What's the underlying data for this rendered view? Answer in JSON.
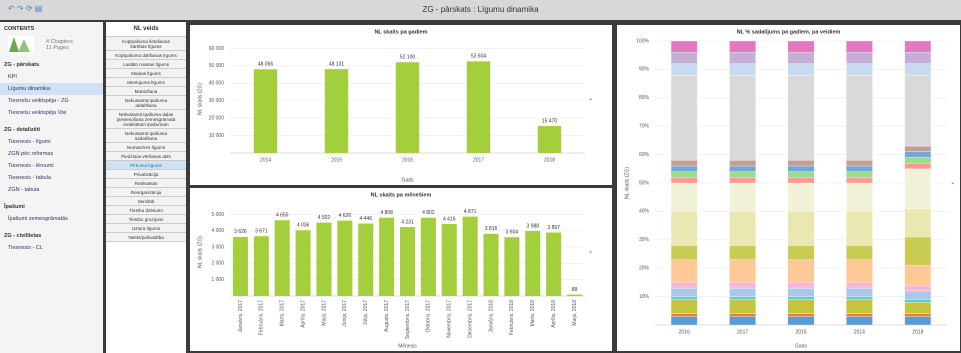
{
  "header": {
    "title": "ZG - pārskats : Līgumu dinamika"
  },
  "sidebar": {
    "title": "CONTENTS",
    "chapters": "4 Chapters",
    "pages": "11 Pages",
    "sections": [
      {
        "title": "ZG - pārskats",
        "items": [
          {
            "label": "KPI"
          },
          {
            "label": "Līgumu dinamika",
            "selected": true
          },
          {
            "label": "Tiesnešu veiktspēja - ZG"
          },
          {
            "label": "Tiesnešu veiktspēja Visi"
          }
        ]
      },
      {
        "title": "ZG - detalizēti",
        "items": [
          {
            "label": "Tiesnesis - līgumi"
          },
          {
            "label": "ZGN pēc reformas"
          },
          {
            "label": "Tiesnesis - lēmumi"
          },
          {
            "label": "Tiesnesis - tabula"
          },
          {
            "label": "ZGN - tabula"
          }
        ]
      },
      {
        "title": "Īpašumi",
        "items": [
          {
            "label": "Īpašumi zemesgrāmatās"
          }
        ]
      },
      {
        "title": "ZG - civillietas",
        "items": [
          {
            "label": "Tiesnesis - CL"
          }
        ]
      }
    ]
  },
  "filter": {
    "title": "NL veids",
    "items": [
      {
        "label": "Kopīpašuma lietošanas kārtības līgums"
      },
      {
        "label": "Kopīpašuma dalīšanas līgums"
      },
      {
        "label": "Laulāto mantas līgums"
      },
      {
        "label": "Maiņas līgums"
      },
      {
        "label": "Mantojuma līgums"
      },
      {
        "label": "Mantošana"
      },
      {
        "label": "Nekustamā īpašuma atdalīšana"
      },
      {
        "label": "Nekustamā īpašuma daļas pievienošana zemesgrāmatā ierakstītam īpašumam"
      },
      {
        "label": "Nekustamā īpašuma sadalīšana"
      },
      {
        "label": "Nomas/īres līgums"
      },
      {
        "label": "Piedziņas vēršanas akts"
      },
      {
        "label": "Pirkuma līgums",
        "selected": true
      },
      {
        "label": "Privatizācija"
      },
      {
        "label": "Reālnastas"
      },
      {
        "label": "Reorganizācija"
      },
      {
        "label": "Servitūti"
      },
      {
        "label": "Tiesību dzēsumi"
      },
      {
        "label": "Tiesību grozījumi"
      },
      {
        "label": "Uztura līgums"
      },
      {
        "label": "Valsts/pašvaldība"
      }
    ]
  },
  "chart_data": [
    {
      "type": "bar",
      "title": "NL skaits pa gadiem",
      "x_label": "Gads",
      "y_label": "NL skaits (ZG)",
      "color": "#a3cf3d",
      "grid": true,
      "categories": [
        "2014",
        "2015",
        "2016",
        "2017",
        "2018"
      ],
      "values": [
        48066,
        48131,
        52100,
        52604,
        15470
      ],
      "value_labels": [
        "48 066",
        "48 131",
        "52 100",
        "52 604",
        "15 470"
      ],
      "ylim": [
        0,
        62000
      ],
      "yticks": [
        {
          "value": 10000,
          "label": "10 000"
        },
        {
          "value": 20000,
          "label": "20 000"
        },
        {
          "value": 30000,
          "label": "30 000"
        },
        {
          "value": 40000,
          "label": "40 000"
        },
        {
          "value": 50000,
          "label": "50 000"
        },
        {
          "value": 60000,
          "label": "60 000"
        }
      ]
    },
    {
      "type": "bar",
      "title": "NL skaits pa mēnešiem",
      "x_label": "Mēnesis",
      "y_label": "NL skaits (ZG)",
      "color": "#a3cf3d",
      "grid": true,
      "categories": [
        "Janvāris, 2017",
        "Februāris, 2017",
        "Marts, 2017",
        "Aprīlis, 2017",
        "Maijs, 2017",
        "Jūnijs, 2017",
        "Jūlijs, 2017",
        "Augusts, 2017",
        "Septembris, 2017",
        "Oktobris, 2017",
        "Novembris, 2017",
        "Decembris, 2017",
        "Janvāris, 2018",
        "Februāris, 2018",
        "Marts, 2018",
        "Aprīlis, 2018",
        "Maijs, 2018"
      ],
      "values": [
        3626,
        3671,
        4650,
        4036,
        4502,
        4626,
        4446,
        4808,
        4231,
        4802,
        4416,
        4871,
        3816,
        3604,
        3988,
        3897,
        88
      ],
      "value_labels": [
        "3 626",
        "3 671",
        "4 650",
        "4 036",
        "4 502",
        "4 626",
        "4 446",
        "4 808",
        "4 231",
        "4 802",
        "4 416",
        "4 871",
        "3 816",
        "3 604",
        "3 988",
        "3 897",
        "88"
      ],
      "ylim": [
        0,
        5400
      ],
      "yticks": [
        {
          "value": 1000,
          "label": "1 000"
        },
        {
          "value": 2000,
          "label": "2 000"
        },
        {
          "value": 3000,
          "label": "3 000"
        },
        {
          "value": 4000,
          "label": "4 000"
        },
        {
          "value": 5000,
          "label": "5 000"
        }
      ]
    },
    {
      "type": "stacked_bar",
      "title": "NL % sadalījums pa gadiem, pa veidiem",
      "x_label": "Gads",
      "y_label": "NL skaits (ZG)",
      "grid": true,
      "categories": [
        "2016",
        "2017",
        "2015",
        "2014",
        "2018"
      ],
      "ylim": [
        0,
        100
      ],
      "yticks": [
        {
          "value": 10,
          "label": "10%"
        },
        {
          "value": 20,
          "label": "20%"
        },
        {
          "value": 30,
          "label": "30%"
        },
        {
          "value": 40,
          "label": "40%"
        },
        {
          "value": 50,
          "label": "50%"
        },
        {
          "value": 60,
          "label": "60%"
        },
        {
          "value": 70,
          "label": "70%"
        },
        {
          "value": 80,
          "label": "80%"
        },
        {
          "value": 90,
          "label": "90%"
        },
        {
          "value": 100,
          "label": "100%"
        }
      ],
      "series": [
        {
          "color": "#5b9bd5",
          "values": [
            3,
            3,
            3,
            3,
            3
          ]
        },
        {
          "color": "#ed7d31",
          "values": [
            1,
            1,
            1,
            1,
            1
          ]
        },
        {
          "color": "#c5c53d",
          "values": [
            5,
            5,
            5,
            5,
            4
          ]
        },
        {
          "color": "#4dd0e1",
          "values": [
            1,
            1,
            1,
            1,
            1
          ]
        },
        {
          "color": "#aec7e8",
          "values": [
            3,
            3,
            3,
            3,
            3
          ]
        },
        {
          "color": "#f7b6d2",
          "values": [
            2,
            2,
            2,
            2,
            2
          ]
        },
        {
          "color": "#ffc896",
          "values": [
            8,
            8,
            8,
            8,
            7
          ]
        },
        {
          "color": "#c9cc52",
          "values": [
            5,
            5,
            5,
            5,
            10
          ]
        },
        {
          "color": "#e8e8b0",
          "values": [
            12,
            12,
            12,
            12,
            10
          ]
        },
        {
          "color": "#f2f2d8",
          "values": [
            10,
            10,
            10,
            10,
            14
          ]
        },
        {
          "color": "#ff9896",
          "values": [
            2,
            2,
            2,
            2,
            2
          ]
        },
        {
          "color": "#98df8a",
          "values": [
            2,
            2,
            2,
            2,
            2
          ]
        },
        {
          "color": "#6fa8dc",
          "values": [
            2,
            2,
            2,
            2,
            2
          ]
        },
        {
          "color": "#c49c94",
          "values": [
            2,
            2,
            2,
            2,
            2
          ]
        },
        {
          "color": "#d9d9d9",
          "values": [
            30,
            30,
            30,
            30,
            25
          ]
        },
        {
          "color": "#c6dbef",
          "values": [
            4,
            4,
            4,
            4,
            4
          ]
        },
        {
          "color": "#c5b0d5",
          "values": [
            4,
            4,
            4,
            4,
            4
          ]
        },
        {
          "color": "#e377c2",
          "values": [
            4,
            4,
            4,
            4,
            4
          ]
        }
      ]
    }
  ]
}
